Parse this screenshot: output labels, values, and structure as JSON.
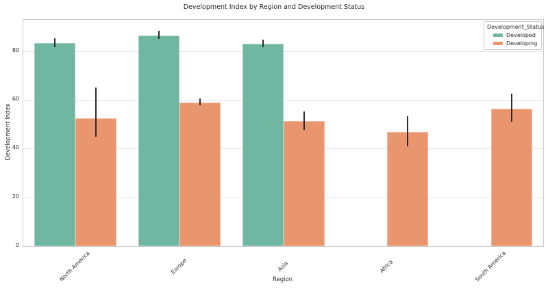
{
  "figure": {
    "title": "Development Index by Region and Development Status"
  },
  "legend": {
    "title": "Development_Status",
    "entries": [
      "Developed",
      "Developing"
    ]
  },
  "chart_data": {
    "type": "bar",
    "title": "Development Index by Region and Development Status",
    "xlabel": "Region",
    "ylabel": "Development Index",
    "categories": [
      "North America",
      "Europe",
      "Asia",
      "Africa",
      "South America"
    ],
    "series": [
      {
        "name": "Developed",
        "color": "#6FB7A0",
        "values": [
          83.4,
          86.4,
          83.1,
          null,
          null
        ],
        "error_intervals": [
          [
            81.7,
            85.2
          ],
          [
            85.0,
            88.4
          ],
          [
            81.7,
            84.6
          ],
          null,
          null
        ]
      },
      {
        "name": "Developing",
        "color": "#E9966F",
        "values": [
          52.4,
          58.8,
          51.4,
          46.8,
          56.3
        ],
        "error_intervals": [
          [
            44.8,
            65.1
          ],
          [
            57.7,
            60.5
          ],
          [
            47.7,
            55.1
          ],
          [
            41.0,
            53.3
          ],
          [
            51.0,
            62.4
          ]
        ]
      }
    ],
    "yticks": [
      0,
      20,
      40,
      60,
      80
    ],
    "ylim": [
      0,
      92.8
    ],
    "grid": "horizontal",
    "error_bar_color": "#2b2b2b",
    "legend_position": "upper right",
    "legend_title": "Development_Status"
  }
}
